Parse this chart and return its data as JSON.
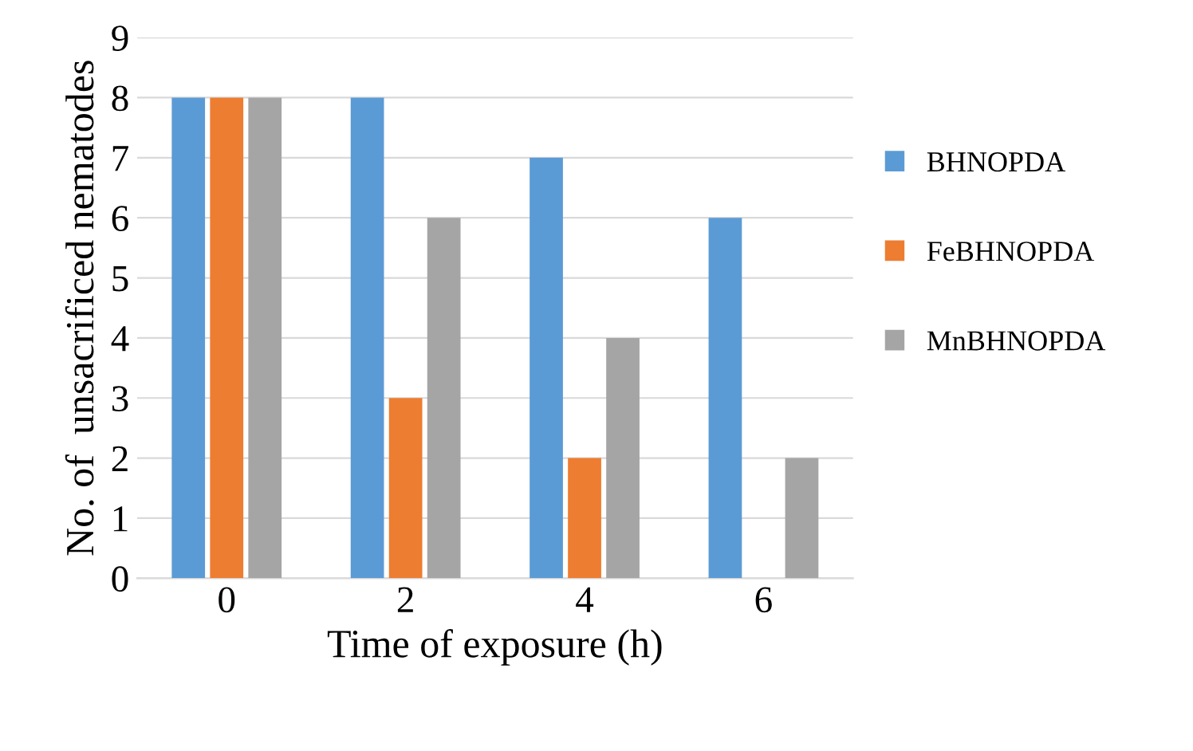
{
  "chart_data": {
    "type": "bar",
    "xlabel": "Time of exposure (h)",
    "ylabel": "No. of  unsacrificed nematodes",
    "categories": [
      "0",
      "2",
      "4",
      "6"
    ],
    "series": [
      {
        "name": "BHNOPDA",
        "color": "#5b9bd5",
        "values": [
          8,
          8,
          7,
          6
        ]
      },
      {
        "name": "FeBHNOPDA",
        "color": "#ed7d31",
        "values": [
          8,
          3,
          2,
          0
        ]
      },
      {
        "name": "MnBHNOPDA",
        "color": "#a5a5a5",
        "values": [
          8,
          6,
          4,
          2
        ]
      }
    ],
    "ylim": [
      0,
      9
    ],
    "yticks": [
      0,
      1,
      2,
      3,
      4,
      5,
      6,
      7,
      8,
      9
    ],
    "grid": "y",
    "legend": "right"
  }
}
